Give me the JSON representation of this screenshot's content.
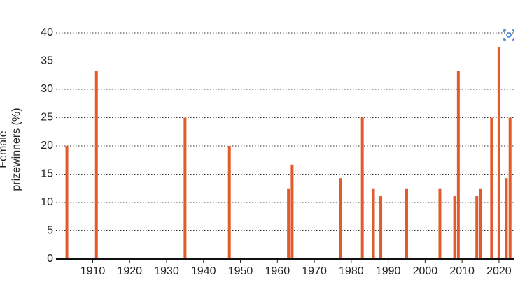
{
  "chart_data": {
    "type": "bar",
    "y_label": "Female prizewinners (%)",
    "x": [
      1903,
      1911,
      1935,
      1947,
      1963,
      1964,
      1977,
      1983,
      1986,
      1988,
      1995,
      2004,
      2008,
      2009,
      2014,
      2015,
      2018,
      2020,
      2022,
      2023
    ],
    "values": [
      20,
      33.3,
      25,
      20,
      12.5,
      16.7,
      14.3,
      25,
      12.5,
      11.1,
      12.5,
      12.5,
      11.1,
      33.3,
      11.1,
      12.5,
      25,
      37.5,
      14.3,
      25
    ],
    "color": "#e35a2b",
    "xlim": [
      1901,
      2024
    ],
    "xticks": [
      1910,
      1920,
      1930,
      1940,
      1950,
      1960,
      1970,
      1980,
      1990,
      2000,
      2010,
      2020
    ],
    "ylim": [
      0,
      40
    ],
    "yticks": [
      0,
      5,
      10,
      15,
      20,
      25,
      30,
      35,
      40
    ],
    "grid": true
  }
}
